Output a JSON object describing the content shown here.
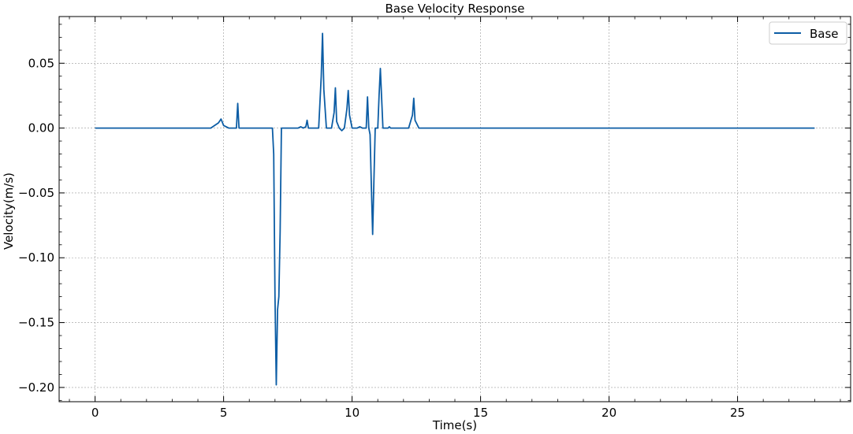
{
  "chart_data": {
    "type": "line",
    "title": "Base Velocity Response",
    "xlabel": "Time(s)",
    "ylabel": "Velocity(m/s)",
    "xlim": [
      -1.4,
      29.4
    ],
    "ylim": [
      -0.211,
      0.086
    ],
    "x_ticks": [
      0,
      5,
      10,
      15,
      20,
      25
    ],
    "x_tick_labels": [
      "0",
      "5",
      "10",
      "15",
      "20",
      "25"
    ],
    "y_ticks": [
      0.05,
      0.0,
      -0.05,
      -0.1,
      -0.15,
      -0.2
    ],
    "y_tick_labels": [
      "0.05",
      "0.00",
      "−0.05",
      "−0.10",
      "−0.15",
      "−0.20"
    ],
    "grid": true,
    "legend_position": "top-right",
    "series": [
      {
        "name": "Base",
        "color": "#0c5da5",
        "x": [
          0,
          4.5,
          4.8,
          4.9,
          5.0,
          5.2,
          5.5,
          5.55,
          5.6,
          5.7,
          6.0,
          6.9,
          6.95,
          7.0,
          7.05,
          7.1,
          7.15,
          7.2,
          7.25,
          7.3,
          7.5,
          7.9,
          8.0,
          8.1,
          8.2,
          8.25,
          8.3,
          8.4,
          8.7,
          8.8,
          8.85,
          8.9,
          9.0,
          9.2,
          9.3,
          9.35,
          9.4,
          9.5,
          9.6,
          9.7,
          9.8,
          9.85,
          9.9,
          10.0,
          10.2,
          10.3,
          10.4,
          10.55,
          10.6,
          10.65,
          10.7,
          10.75,
          10.8,
          10.85,
          10.9,
          11.0,
          11.05,
          11.1,
          11.2,
          11.3,
          11.4,
          11.45,
          11.5,
          11.7,
          11.8,
          12.2,
          12.35,
          12.4,
          12.45,
          12.6,
          13.0,
          14.0,
          28.0
        ],
        "y": [
          0,
          0.0,
          0.004,
          0.007,
          0.002,
          0.0,
          0.0,
          0.019,
          0.0,
          0.0,
          0.0,
          0.0,
          -0.02,
          -0.13,
          -0.198,
          -0.14,
          -0.13,
          -0.08,
          0.0,
          0.0,
          0.0,
          0.0,
          0.001,
          0.0,
          0.001,
          0.006,
          0.0,
          0.0,
          0.0,
          0.04,
          0.073,
          0.03,
          0.0,
          0.0,
          0.012,
          0.031,
          0.005,
          0.0,
          -0.002,
          0.0,
          0.015,
          0.029,
          0.01,
          0.0,
          0.0,
          0.001,
          0.0,
          0.0,
          0.024,
          0.0,
          -0.005,
          -0.045,
          -0.082,
          -0.04,
          0.0,
          0.0,
          0.025,
          0.046,
          0.0,
          0.0,
          0.0,
          0.001,
          0.0,
          0.0,
          0.0,
          0.0,
          0.01,
          0.023,
          0.006,
          0.0,
          0.0,
          0.0,
          0.0
        ]
      }
    ]
  }
}
